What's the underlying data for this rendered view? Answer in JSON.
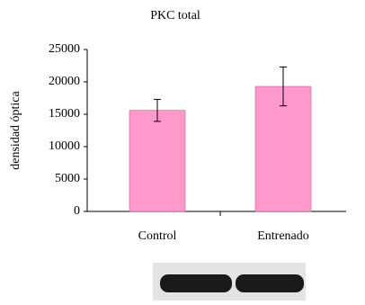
{
  "chart_data": {
    "type": "bar",
    "title": "PKC total",
    "y_label": "densidad óptica",
    "categories": [
      "Control",
      "Entrenado"
    ],
    "values": [
      15600,
      19300
    ],
    "errors": [
      1700,
      3000
    ],
    "color": "#ff99cc",
    "ylim": [
      0,
      25000
    ],
    "yticks": [
      0,
      5000,
      10000,
      15000,
      20000,
      25000
    ],
    "grid": false
  }
}
